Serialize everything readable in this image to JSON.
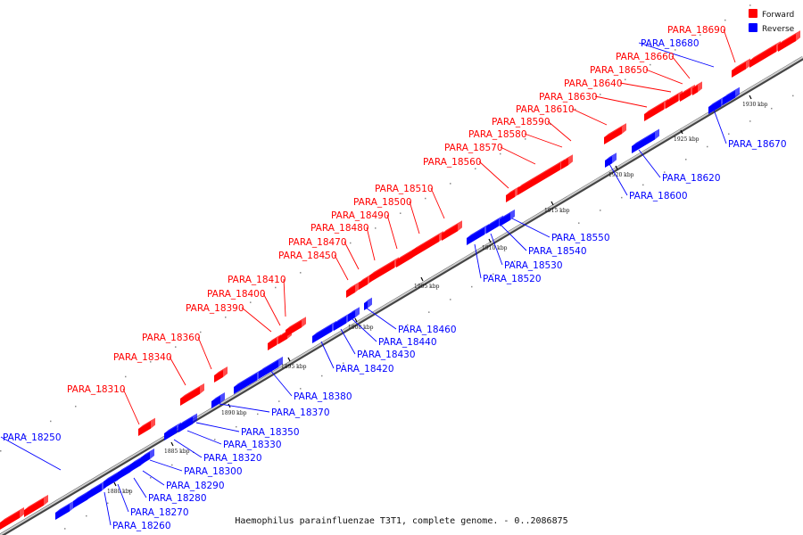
{
  "title": "Haemophilus parainfluenzae T3T1, complete genome. - 0..2086875",
  "legend": [
    {
      "label": "Forward",
      "color": "#ff0000"
    },
    {
      "label": "Reverse",
      "color": "#0000ff"
    }
  ],
  "colors": {
    "forward": "#ff0000",
    "reverse": "#0000ff",
    "axis": "#777777",
    "tick": "#000000"
  },
  "scale_ticks": [
    {
      "kbp": 1880,
      "label": "1880 kbp"
    },
    {
      "kbp": 1885,
      "label": "1885 kbp"
    },
    {
      "kbp": 1890,
      "label": "1890 kbp"
    },
    {
      "kbp": 1895,
      "label": "1895 kbp"
    },
    {
      "kbp": 1900,
      "label": "1900 kbp"
    },
    {
      "kbp": 1905,
      "label": "1905 kbp"
    },
    {
      "kbp": 1910,
      "label": "1910 kbp"
    },
    {
      "kbp": 1915,
      "label": "1915 kbp"
    },
    {
      "kbp": 1920,
      "label": "1920 kbp"
    },
    {
      "kbp": 1925,
      "label": "1925 kbp"
    },
    {
      "kbp": 1930,
      "label": "1930 kbp"
    }
  ],
  "genes": [
    {
      "id": "PARA_18250",
      "strand": "reverse"
    },
    {
      "id": "PARA_18260",
      "strand": "reverse"
    },
    {
      "id": "PARA_18270",
      "strand": "reverse"
    },
    {
      "id": "PARA_18280",
      "strand": "reverse"
    },
    {
      "id": "PARA_18290",
      "strand": "reverse"
    },
    {
      "id": "PARA_18300",
      "strand": "reverse"
    },
    {
      "id": "PARA_18310",
      "strand": "forward"
    },
    {
      "id": "PARA_18320",
      "strand": "reverse"
    },
    {
      "id": "PARA_18330",
      "strand": "reverse"
    },
    {
      "id": "PARA_18340",
      "strand": "forward"
    },
    {
      "id": "PARA_18350",
      "strand": "reverse"
    },
    {
      "id": "PARA_18360",
      "strand": "forward"
    },
    {
      "id": "PARA_18370",
      "strand": "reverse"
    },
    {
      "id": "PARA_18380",
      "strand": "reverse"
    },
    {
      "id": "PARA_18390",
      "strand": "forward"
    },
    {
      "id": "PARA_18400",
      "strand": "forward"
    },
    {
      "id": "PARA_18410",
      "strand": "forward"
    },
    {
      "id": "PARA_18420",
      "strand": "reverse"
    },
    {
      "id": "PARA_18430",
      "strand": "reverse"
    },
    {
      "id": "PARA_18440",
      "strand": "reverse"
    },
    {
      "id": "PARA_18450",
      "strand": "forward"
    },
    {
      "id": "PARA_18460",
      "strand": "reverse"
    },
    {
      "id": "PARA_18470",
      "strand": "forward"
    },
    {
      "id": "PARA_18480",
      "strand": "forward"
    },
    {
      "id": "PARA_18490",
      "strand": "forward"
    },
    {
      "id": "PARA_18500",
      "strand": "forward"
    },
    {
      "id": "PARA_18510",
      "strand": "forward"
    },
    {
      "id": "PARA_18520",
      "strand": "reverse"
    },
    {
      "id": "PARA_18530",
      "strand": "reverse"
    },
    {
      "id": "PARA_18540",
      "strand": "reverse"
    },
    {
      "id": "PARA_18550",
      "strand": "reverse"
    },
    {
      "id": "PARA_18560",
      "strand": "forward"
    },
    {
      "id": "PARA_18570",
      "strand": "forward"
    },
    {
      "id": "PARA_18580",
      "strand": "forward"
    },
    {
      "id": "PARA_18590",
      "strand": "forward"
    },
    {
      "id": "PARA_18600",
      "strand": "reverse"
    },
    {
      "id": "PARA_18610",
      "strand": "forward"
    },
    {
      "id": "PARA_18620",
      "strand": "reverse"
    },
    {
      "id": "PARA_18630",
      "strand": "forward"
    },
    {
      "id": "PARA_18640",
      "strand": "forward"
    },
    {
      "id": "PARA_18650",
      "strand": "forward"
    },
    {
      "id": "PARA_18660",
      "strand": "forward"
    },
    {
      "id": "PARA_18670",
      "strand": "reverse"
    },
    {
      "id": "PARA_18680",
      "strand": "reverse"
    },
    {
      "id": "PARA_18690",
      "strand": "forward"
    }
  ]
}
